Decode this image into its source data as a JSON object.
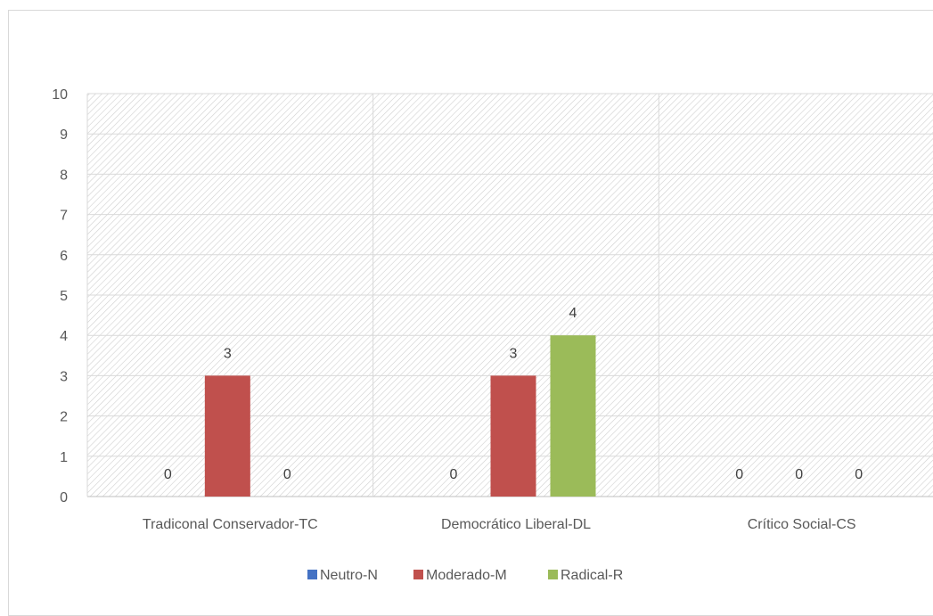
{
  "chart_data": {
    "type": "bar",
    "title": "",
    "xlabel": "",
    "ylabel": "",
    "ylim": [
      0,
      10
    ],
    "yticks": [
      0,
      1,
      2,
      3,
      4,
      5,
      6,
      7,
      8,
      9,
      10
    ],
    "categories": [
      "Tradiconal Conservador-TC",
      "Democrático Liberal-DL",
      "Crítico Social-CS"
    ],
    "series": [
      {
        "name": "Neutro-N",
        "color": "#4472c4",
        "values": [
          0,
          0,
          0
        ]
      },
      {
        "name": "Moderado-M",
        "color": "#c0504d",
        "values": [
          3,
          3,
          0
        ]
      },
      {
        "name": "Radical-R",
        "color": "#9bbb59",
        "values": [
          0,
          4,
          0
        ]
      }
    ],
    "data_labels": true,
    "grid": true,
    "plot_area_pattern": "diagonal-hatch",
    "legend_position": "bottom"
  }
}
